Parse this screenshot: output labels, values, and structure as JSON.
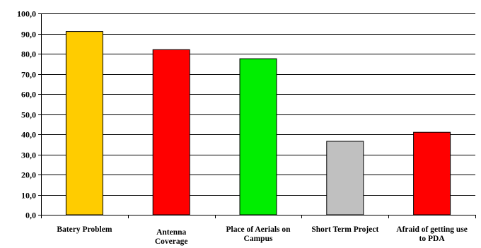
{
  "chart_data": {
    "type": "bar",
    "categories": [
      [
        "Batery Problem"
      ],
      [
        "Antenna",
        "Coverage"
      ],
      [
        "Place of Aerials on",
        "Campus"
      ],
      [
        "Short Term Project"
      ],
      [
        "Afraid of getting use",
        "to PDA"
      ]
    ],
    "values": [
      91.0,
      82.0,
      77.5,
      36.5,
      41.0
    ],
    "bar_colors": [
      "#FFCC00",
      "#FF0000",
      "#00EE00",
      "#C0C0C0",
      "#FF0000"
    ],
    "bar_outline": "#000000",
    "gridline_color": "#000000",
    "ylim": [
      0,
      100
    ],
    "yticks": [
      0,
      10,
      20,
      30,
      40,
      50,
      60,
      70,
      80,
      90,
      100
    ],
    "ytick_format": "one-decimal-comma",
    "grid": true,
    "legend": "none",
    "title": "",
    "xlabel": "",
    "ylabel": ""
  }
}
